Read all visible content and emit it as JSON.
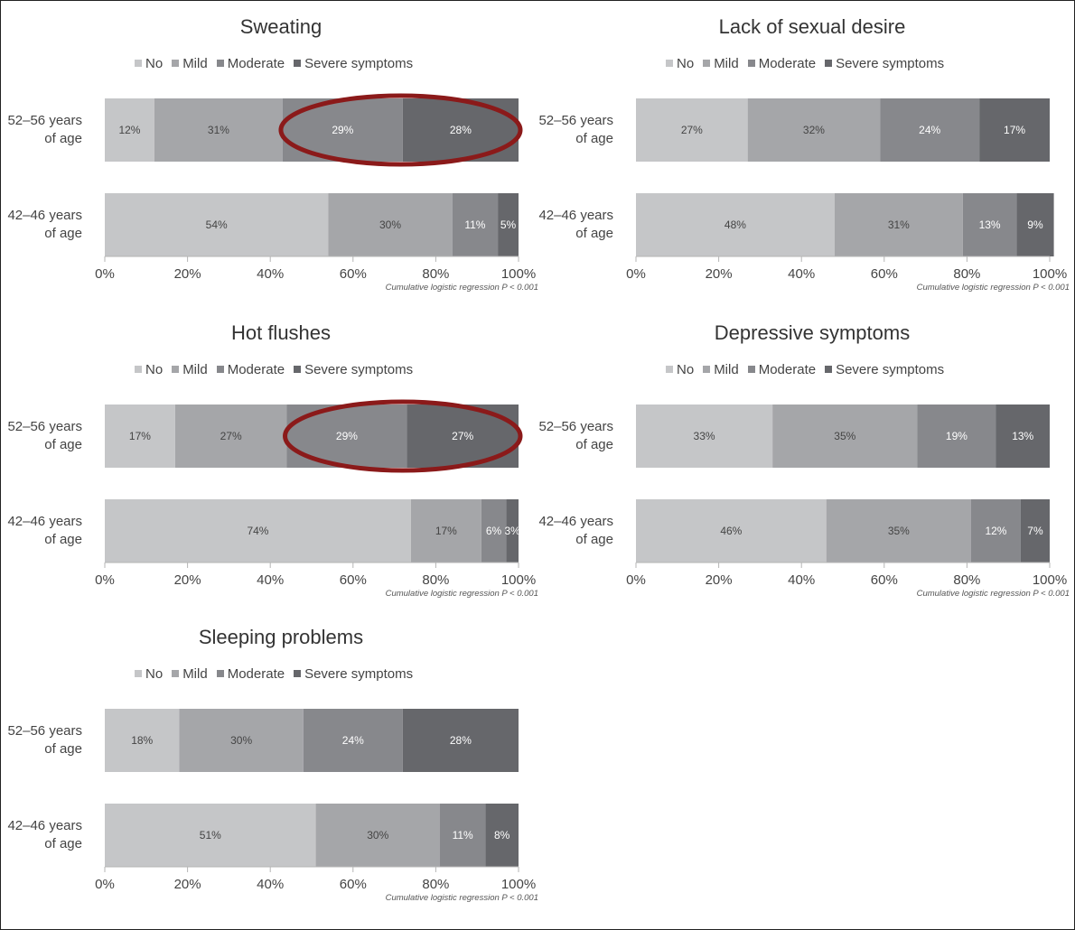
{
  "legend": [
    {
      "label": "No",
      "color": "#c5c6c8"
    },
    {
      "label": "Mild",
      "color": "#a5a6a9"
    },
    {
      "label": "Moderate",
      "color": "#87888c"
    },
    {
      "label": "Severe symptoms",
      "color": "#66676b"
    }
  ],
  "age_groups": [
    [
      "52–56 years",
      "of age"
    ],
    [
      "42–46 years",
      "of age"
    ]
  ],
  "annotation": "Cumulative logistic regression P < 0.001",
  "x_ticks": [
    "0%",
    "20%",
    "40%",
    "60%",
    "80%",
    "100%"
  ],
  "chart_data": [
    {
      "type": "bar",
      "stacked": "horizontal-100%",
      "title": "Sweating",
      "categories": [
        "52–56 years of age",
        "42–46 years of age"
      ],
      "series": [
        {
          "name": "No",
          "values": [
            12,
            54
          ]
        },
        {
          "name": "Mild",
          "values": [
            31,
            30
          ]
        },
        {
          "name": "Moderate",
          "values": [
            29,
            11
          ]
        },
        {
          "name": "Severe symptoms",
          "values": [
            28,
            5
          ]
        }
      ],
      "xlim": [
        0,
        100
      ],
      "highlight": {
        "row": 0,
        "from": 43,
        "to": 100,
        "color": "#8b1a1a"
      }
    },
    {
      "type": "bar",
      "stacked": "horizontal-100%",
      "title": "Lack of sexual desire",
      "categories": [
        "52–56 years of age",
        "42–46 years of age"
      ],
      "series": [
        {
          "name": "No",
          "values": [
            27,
            48
          ]
        },
        {
          "name": "Mild",
          "values": [
            32,
            31
          ]
        },
        {
          "name": "Moderate",
          "values": [
            24,
            13
          ]
        },
        {
          "name": "Severe symptoms",
          "values": [
            17,
            9
          ]
        }
      ],
      "xlim": [
        0,
        100
      ]
    },
    {
      "type": "bar",
      "stacked": "horizontal-100%",
      "title": "Hot flushes",
      "categories": [
        "52–56 years of age",
        "42–46 years of age"
      ],
      "series": [
        {
          "name": "No",
          "values": [
            17,
            74
          ]
        },
        {
          "name": "Mild",
          "values": [
            27,
            17
          ]
        },
        {
          "name": "Moderate",
          "values": [
            29,
            6
          ]
        },
        {
          "name": "Severe symptoms",
          "values": [
            27,
            3
          ]
        }
      ],
      "xlim": [
        0,
        100
      ],
      "highlight": {
        "row": 0,
        "from": 44,
        "to": 100,
        "color": "#8b1a1a"
      }
    },
    {
      "type": "bar",
      "stacked": "horizontal-100%",
      "title": "Depressive symptoms",
      "categories": [
        "52–56 years of age",
        "42–46 years of age"
      ],
      "series": [
        {
          "name": "No",
          "values": [
            33,
            46
          ]
        },
        {
          "name": "Mild",
          "values": [
            35,
            35
          ]
        },
        {
          "name": "Moderate",
          "values": [
            19,
            12
          ]
        },
        {
          "name": "Severe symptoms",
          "values": [
            13,
            7
          ]
        }
      ],
      "xlim": [
        0,
        100
      ]
    },
    {
      "type": "bar",
      "stacked": "horizontal-100%",
      "title": "Sleeping problems",
      "categories": [
        "52–56 years of age",
        "42–46 years of age"
      ],
      "series": [
        {
          "name": "No",
          "values": [
            18,
            51
          ]
        },
        {
          "name": "Mild",
          "values": [
            30,
            30
          ]
        },
        {
          "name": "Moderate",
          "values": [
            24,
            11
          ]
        },
        {
          "name": "Severe symptoms",
          "values": [
            28,
            8
          ]
        }
      ],
      "xlim": [
        0,
        100
      ]
    }
  ]
}
